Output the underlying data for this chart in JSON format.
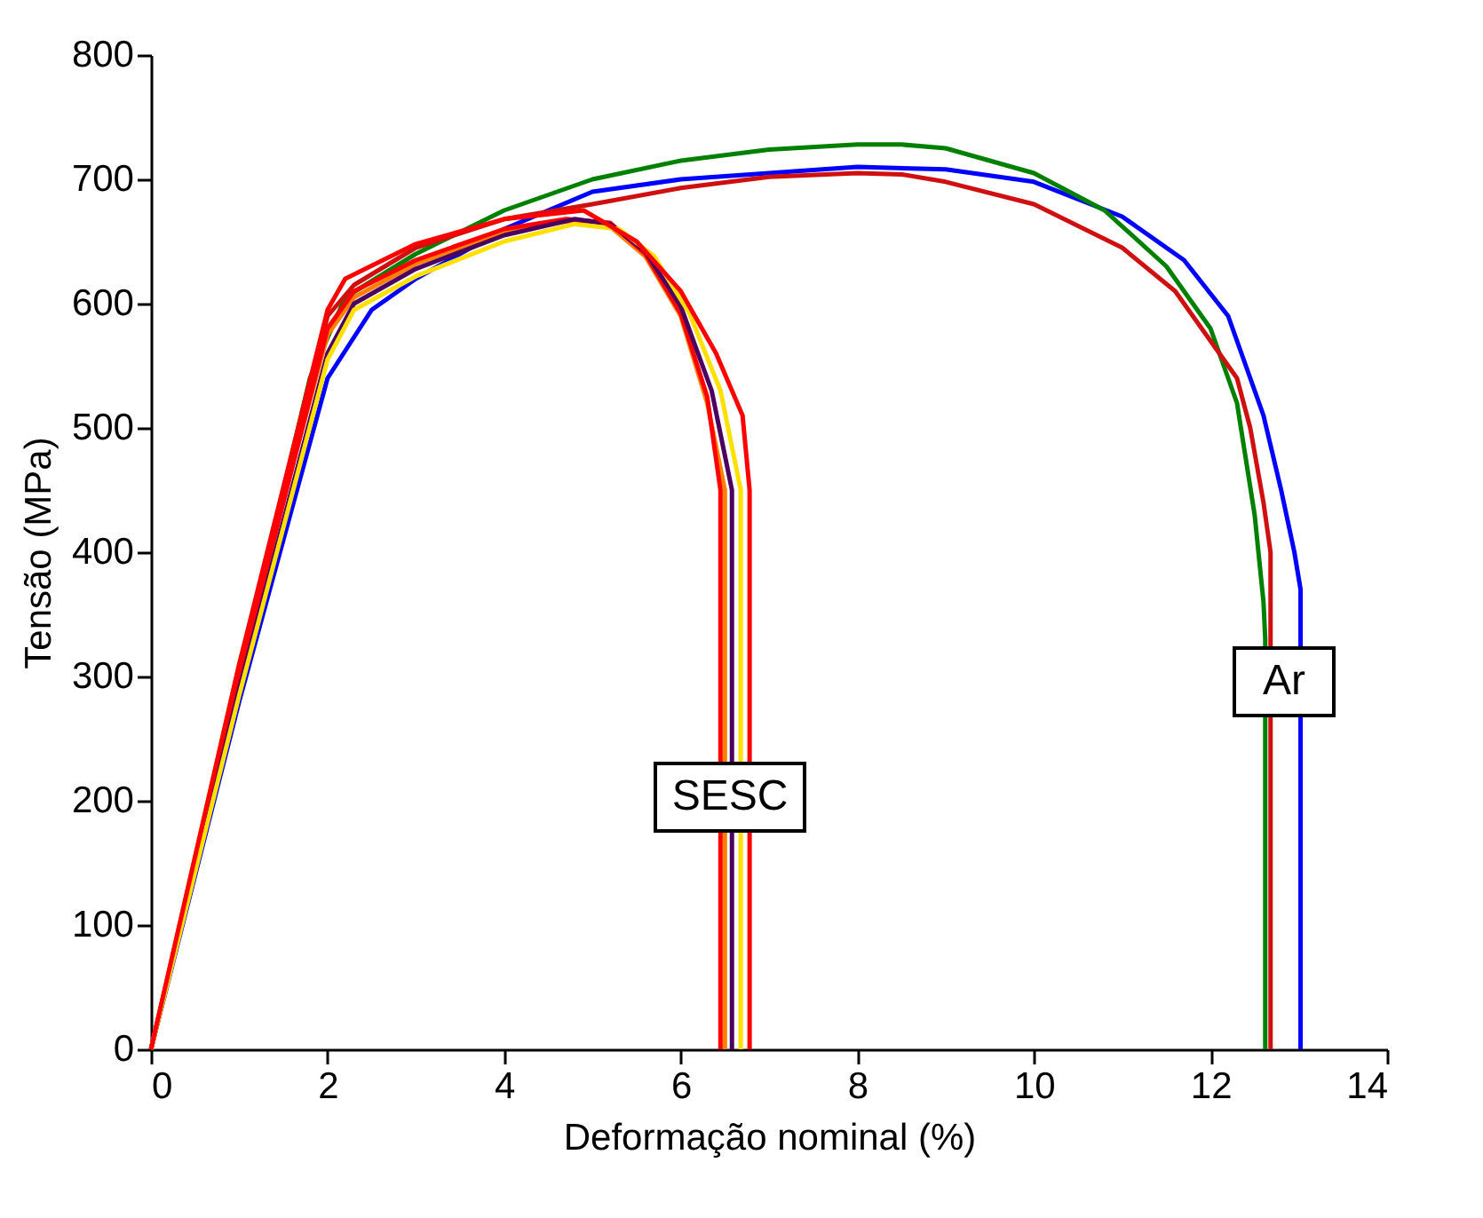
{
  "chart_data": {
    "type": "line",
    "xlabel": "Deformação nominal (%)",
    "ylabel": "Tensão (MPa)",
    "xlim": [
      0,
      14
    ],
    "xticks": [
      0,
      2,
      4,
      6,
      8,
      10,
      12,
      14
    ],
    "ylim": [
      0,
      800
    ],
    "yticks": [
      0,
      100,
      200,
      300,
      400,
      500,
      600,
      700,
      800
    ],
    "grid": false,
    "legend": false,
    "marker": "none",
    "line_style": "solid",
    "annotations": [
      "SESC",
      "Ar"
    ],
    "series": [
      {
        "color": "#0000ff",
        "x": [
          0,
          1,
          2,
          2.5,
          3,
          4,
          5,
          6,
          7,
          8,
          9,
          10,
          11,
          11.7,
          12.2,
          12.6,
          12.8,
          12.95,
          13.02,
          13.02
        ],
        "values": [
          0,
          280,
          540,
          595,
          620,
          660,
          690,
          700,
          705,
          710,
          708,
          698,
          670,
          635,
          590,
          510,
          450,
          400,
          370,
          0
        ]
      },
      {
        "color": "#008000",
        "x": [
          0,
          1,
          1.8,
          2.2,
          3,
          4,
          5,
          6,
          7,
          8,
          8.5,
          9,
          10,
          10.8,
          11.5,
          12,
          12.3,
          12.5,
          12.6,
          12.62,
          12.62
        ],
        "values": [
          0,
          300,
          540,
          605,
          640,
          675,
          700,
          715,
          724,
          728,
          728,
          725,
          705,
          675,
          630,
          580,
          520,
          430,
          360,
          330,
          0
        ]
      },
      {
        "color": "#d01010",
        "x": [
          0,
          1,
          2,
          2.3,
          3,
          4,
          5,
          6,
          7,
          8,
          8.5,
          9,
          10,
          11,
          11.6,
          12,
          12.3,
          12.45,
          12.6,
          12.68,
          12.68
        ],
        "values": [
          0,
          300,
          590,
          615,
          645,
          668,
          680,
          693,
          702,
          705,
          704,
          698,
          680,
          645,
          610,
          570,
          540,
          500,
          440,
          400,
          0
        ]
      },
      {
        "color": "#ff8000",
        "x": [
          0,
          1,
          2,
          2.3,
          3,
          4,
          4.7,
          5.2,
          5.6,
          6,
          6.3,
          6.5,
          6.5
        ],
        "values": [
          0,
          310,
          575,
          605,
          632,
          658,
          666,
          662,
          638,
          590,
          520,
          450,
          0
        ]
      },
      {
        "color": "#ff0000",
        "x": [
          0,
          1,
          2,
          2.3,
          3,
          4,
          4.7,
          5.2,
          5.6,
          6,
          6.3,
          6.45,
          6.45
        ],
        "values": [
          0,
          300,
          580,
          610,
          635,
          660,
          668,
          665,
          640,
          592,
          525,
          450,
          0
        ]
      },
      {
        "color": "#4b0060",
        "x": [
          0,
          1,
          2,
          2.3,
          3,
          4,
          4.8,
          5.2,
          5.6,
          6,
          6.35,
          6.58,
          6.58
        ],
        "values": [
          0,
          290,
          560,
          600,
          628,
          655,
          668,
          664,
          642,
          598,
          530,
          450,
          0
        ]
      },
      {
        "color": "#ffe000",
        "x": [
          0,
          1,
          2,
          2.3,
          3,
          4,
          4.8,
          5.3,
          5.7,
          6.1,
          6.45,
          6.68,
          6.68
        ],
        "values": [
          0,
          285,
          555,
          595,
          622,
          650,
          664,
          660,
          638,
          592,
          530,
          450,
          0
        ]
      },
      {
        "color": "#ff0000",
        "x": [
          0,
          1,
          2,
          2.2,
          3,
          4,
          4.9,
          5.5,
          6,
          6.4,
          6.7,
          6.78,
          6.78
        ],
        "values": [
          0,
          310,
          595,
          620,
          648,
          668,
          675,
          650,
          610,
          560,
          510,
          450,
          0
        ]
      }
    ]
  }
}
